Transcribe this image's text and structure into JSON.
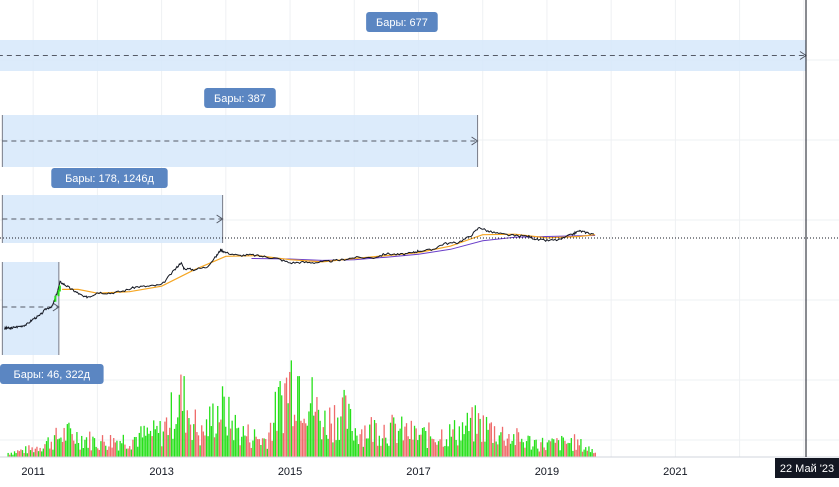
{
  "chart_data": {
    "type": "candlestick-volume",
    "title": "",
    "xlabel": "",
    "ylabel": "",
    "x_tick_labels": [
      "2011",
      "2013",
      "2015",
      "2017",
      "2019",
      "2021"
    ],
    "crosshair_date_label": "22 Май '23",
    "grid": true,
    "colors": {
      "price": "#131722",
      "ma_fast": "#f5a623",
      "ma_slow": "#6a3fc9",
      "volume_up": "#26e01a",
      "volume_down": "#ef6a6a",
      "range_fill": "#d6e8fa",
      "range_label_bg": "#5b86c2",
      "crosshair_label_bg": "#131722"
    },
    "range_measurements": [
      {
        "label": "Бары: 677",
        "start": 2010.45,
        "end": 2023.38
      },
      {
        "label": "Бары: 387",
        "start": 2010.52,
        "end": 2017.92
      },
      {
        "label": "Бары: 178, 1246д",
        "start": 2010.52,
        "end": 2013.95
      },
      {
        "label": "Бары: 46, 322д",
        "start": 2010.52,
        "end": 2011.4
      }
    ],
    "price_series": [
      [
        2010.55,
        0.06
      ],
      [
        2010.6,
        0.065
      ],
      [
        2010.65,
        0.06
      ],
      [
        2010.7,
        0.07
      ],
      [
        2010.8,
        0.08
      ],
      [
        2010.9,
        0.1
      ],
      [
        2011.0,
        0.2
      ],
      [
        2011.1,
        0.3
      ],
      [
        2011.2,
        0.7
      ],
      [
        2011.3,
        1.0
      ],
      [
        2011.35,
        3.0
      ],
      [
        2011.42,
        20.0
      ],
      [
        2011.5,
        14.0
      ],
      [
        2011.6,
        8.0
      ],
      [
        2011.7,
        5.0
      ],
      [
        2011.8,
        3.0
      ],
      [
        2011.9,
        3.5
      ],
      [
        2012.0,
        5.5
      ],
      [
        2012.2,
        5.0
      ],
      [
        2012.4,
        6.5
      ],
      [
        2012.6,
        11.0
      ],
      [
        2012.8,
        12.0
      ],
      [
        2013.0,
        14.0
      ],
      [
        2013.2,
        90.0
      ],
      [
        2013.3,
        230.0
      ],
      [
        2013.35,
        110.0
      ],
      [
        2013.5,
        95.0
      ],
      [
        2013.7,
        130.0
      ],
      [
        2013.85,
        500.0
      ],
      [
        2013.92,
        1150.0
      ],
      [
        2014.0,
        800.0
      ],
      [
        2014.2,
        550.0
      ],
      [
        2014.4,
        600.0
      ],
      [
        2014.6,
        480.0
      ],
      [
        2014.8,
        380.0
      ],
      [
        2015.0,
        220.0
      ],
      [
        2015.2,
        240.0
      ],
      [
        2015.4,
        230.0
      ],
      [
        2015.6,
        270.0
      ],
      [
        2015.8,
        320.0
      ],
      [
        2016.0,
        430.0
      ],
      [
        2016.3,
        420.0
      ],
      [
        2016.5,
        700.0
      ],
      [
        2016.7,
        620.0
      ],
      [
        2016.9,
        750.0
      ],
      [
        2017.0,
        1000.0
      ],
      [
        2017.2,
        1100.0
      ],
      [
        2017.4,
        2500.0
      ],
      [
        2017.6,
        2700.0
      ],
      [
        2017.8,
        6000.0
      ],
      [
        2017.95,
        19000.0
      ],
      [
        2018.1,
        11000.0
      ],
      [
        2018.3,
        8000.0
      ],
      [
        2018.5,
        6500.0
      ],
      [
        2018.7,
        6300.0
      ],
      [
        2018.85,
        4000.0
      ],
      [
        2019.0,
        3600.0
      ],
      [
        2019.2,
        4000.0
      ],
      [
        2019.4,
        8000.0
      ],
      [
        2019.5,
        12000.0
      ],
      [
        2019.6,
        10000.0
      ],
      [
        2019.75,
        8000.0
      ]
    ],
    "ma_fast_series": [
      [
        2011.45,
        8.0
      ],
      [
        2011.7,
        8.0
      ],
      [
        2012.0,
        5.0
      ],
      [
        2012.5,
        6.0
      ],
      [
        2013.0,
        12.0
      ],
      [
        2013.5,
        90.0
      ],
      [
        2014.0,
        500.0
      ],
      [
        2014.5,
        550.0
      ],
      [
        2015.0,
        330.0
      ],
      [
        2015.5,
        250.0
      ],
      [
        2016.0,
        380.0
      ],
      [
        2016.5,
        550.0
      ],
      [
        2017.0,
        800.0
      ],
      [
        2017.5,
        1800.0
      ],
      [
        2018.0,
        7500.0
      ],
      [
        2018.5,
        8000.0
      ],
      [
        2019.0,
        5000.0
      ],
      [
        2019.5,
        6000.0
      ],
      [
        2019.75,
        7500.0
      ]
    ],
    "ma_slow_series": [
      [
        2014.4,
        380.0
      ],
      [
        2015.0,
        360.0
      ],
      [
        2015.5,
        300.0
      ],
      [
        2016.0,
        330.0
      ],
      [
        2016.5,
        450.0
      ],
      [
        2017.0,
        650.0
      ],
      [
        2017.5,
        1200.0
      ],
      [
        2018.0,
        3500.0
      ],
      [
        2018.5,
        5500.0
      ],
      [
        2019.0,
        6000.0
      ],
      [
        2019.5,
        6500.0
      ],
      [
        2019.75,
        6800.0
      ]
    ],
    "volume_series_relative": [
      [
        2010.6,
        0.05
      ],
      [
        2011.0,
        0.1
      ],
      [
        2011.5,
        0.28
      ],
      [
        2012.0,
        0.18
      ],
      [
        2012.5,
        0.22
      ],
      [
        2013.0,
        0.3
      ],
      [
        2013.3,
        0.72
      ],
      [
        2013.6,
        0.25
      ],
      [
        2013.9,
        0.6
      ],
      [
        2014.2,
        0.3
      ],
      [
        2014.6,
        0.2
      ],
      [
        2015.0,
        0.95
      ],
      [
        2015.1,
        1.0
      ],
      [
        2015.3,
        0.7
      ],
      [
        2015.5,
        0.4
      ],
      [
        2015.8,
        0.55
      ],
      [
        2016.0,
        0.32
      ],
      [
        2016.4,
        0.35
      ],
      [
        2016.8,
        0.3
      ],
      [
        2017.0,
        0.25
      ],
      [
        2017.5,
        0.28
      ],
      [
        2017.9,
        0.4
      ],
      [
        2018.2,
        0.3
      ],
      [
        2018.6,
        0.2
      ],
      [
        2019.0,
        0.15
      ],
      [
        2019.4,
        0.18
      ],
      [
        2019.75,
        0.06
      ]
    ]
  }
}
